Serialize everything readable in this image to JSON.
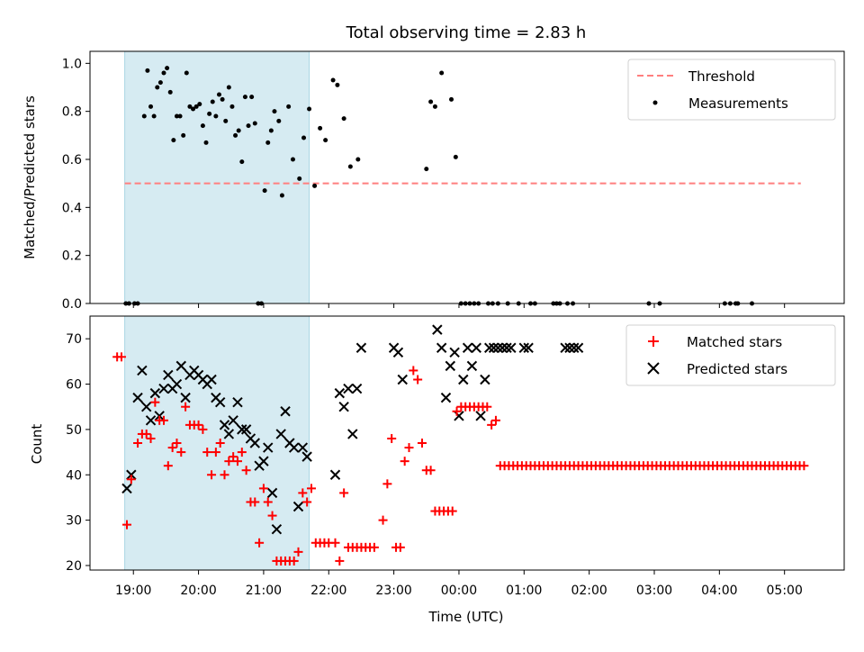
{
  "chart_data": [
    {
      "type": "scatter",
      "title": "Total observing time = 2.83 h",
      "ylabel": "Matched/Predicted stars",
      "xlim": [
        "18:20",
        "05:55"
      ],
      "ylim": [
        0,
        1.05
      ],
      "yticks": [
        "0.0",
        "0.2",
        "0.4",
        "0.6",
        "0.8",
        "1.0"
      ],
      "legend_position": "top-right",
      "shaded_interval": [
        "18:52",
        "21:42"
      ],
      "threshold": {
        "name": "Threshold",
        "value": 0.5,
        "x_range": [
          "18:52",
          "05:15"
        ],
        "style": "dashed"
      },
      "series": [
        {
          "name": "Measurements",
          "x": [
            "18:53",
            "18:56",
            "19:01",
            "19:04",
            "19:10",
            "19:13",
            "19:16",
            "19:19",
            "19:22",
            "19:25",
            "19:28",
            "19:31",
            "19:34",
            "19:37",
            "19:40",
            "19:43",
            "19:46",
            "19:49",
            "19:52",
            "19:55",
            "19:58",
            "20:01",
            "20:04",
            "20:07",
            "20:10",
            "20:13",
            "20:16",
            "20:19",
            "20:22",
            "20:25",
            "20:28",
            "20:31",
            "20:34",
            "20:37",
            "20:40",
            "20:43",
            "20:46",
            "20:49",
            "20:52",
            "20:55",
            "20:58",
            "21:01",
            "21:04",
            "21:07",
            "21:10",
            "21:14",
            "21:17",
            "21:23",
            "21:27",
            "21:33",
            "21:37",
            "21:42",
            "21:47",
            "21:52",
            "21:57",
            "22:04",
            "22:08",
            "22:14",
            "22:20",
            "22:27",
            "23:30",
            "23:34",
            "23:38",
            "23:44",
            "23:53",
            "23:57",
            "24:02",
            "24:06",
            "24:10",
            "24:14",
            "24:18",
            "24:27",
            "24:31",
            "24:36",
            "24:45",
            "24:55",
            "25:06",
            "25:10",
            "25:27",
            "25:30",
            "25:33",
            "25:40",
            "25:45",
            "26:55",
            "27:05",
            "28:05",
            "28:10",
            "28:15",
            "28:17",
            "28:30"
          ],
          "values": [
            0.0,
            0.0,
            0.0,
            0.0,
            0.78,
            0.97,
            0.82,
            0.78,
            0.9,
            0.92,
            0.96,
            0.98,
            0.88,
            0.68,
            0.78,
            0.78,
            0.7,
            0.96,
            0.82,
            0.81,
            0.82,
            0.83,
            0.74,
            0.67,
            0.79,
            0.84,
            0.78,
            0.87,
            0.85,
            0.76,
            0.9,
            0.82,
            0.7,
            0.72,
            0.59,
            0.86,
            0.74,
            0.86,
            0.75,
            0.0,
            0.0,
            0.47,
            0.67,
            0.72,
            0.8,
            0.76,
            0.45,
            0.82,
            0.6,
            0.52,
            0.69,
            0.81,
            0.49,
            0.73,
            0.68,
            0.93,
            0.91,
            0.77,
            0.57,
            0.6,
            0.56,
            0.84,
            0.82,
            0.96,
            0.85,
            0.61,
            0.0,
            0.0,
            0.0,
            0.0,
            0.0,
            0.0,
            0.0,
            0.0,
            0.0,
            0.0,
            0.0,
            0.0,
            0.0,
            0.0,
            0.0,
            0.0,
            0.0,
            0.0,
            0.0,
            0.0,
            0.0,
            0.0,
            0.0,
            0.0
          ]
        }
      ]
    },
    {
      "type": "scatter",
      "ylabel": "Count",
      "xlabel": "Time (UTC)",
      "xlim": [
        "18:20",
        "05:55"
      ],
      "ylim": [
        19,
        75
      ],
      "yticks": [
        "20",
        "30",
        "40",
        "50",
        "60",
        "70"
      ],
      "xticks": [
        "19:00",
        "20:00",
        "21:00",
        "22:00",
        "23:00",
        "00:00",
        "01:00",
        "02:00",
        "03:00",
        "04:00",
        "05:00"
      ],
      "legend_position": "top-right",
      "shaded_interval": [
        "18:52",
        "21:42"
      ],
      "series": [
        {
          "name": "Matched stars",
          "marker": "+",
          "x": [
            "18:45",
            "18:49",
            "18:54",
            "18:58",
            "19:04",
            "19:08",
            "19:12",
            "19:16",
            "19:20",
            "19:24",
            "19:28",
            "19:32",
            "19:36",
            "19:40",
            "19:44",
            "19:48",
            "19:52",
            "19:56",
            "20:00",
            "20:04",
            "20:08",
            "20:12",
            "20:16",
            "20:20",
            "20:24",
            "20:28",
            "20:32",
            "20:36",
            "20:40",
            "20:44",
            "20:48",
            "20:52",
            "20:56",
            "21:00",
            "21:04",
            "21:08",
            "21:12",
            "21:16",
            "21:20",
            "21:24",
            "21:28",
            "21:32",
            "21:36",
            "21:40",
            "21:44",
            "21:48",
            "21:52",
            "21:56",
            "22:00",
            "22:06",
            "22:10",
            "22:14",
            "22:18",
            "22:22",
            "22:26",
            "22:30",
            "22:34",
            "22:38",
            "22:42",
            "22:50",
            "22:54",
            "22:58",
            "23:02",
            "23:06",
            "23:10",
            "23:14",
            "23:18",
            "23:22",
            "23:26",
            "23:30",
            "23:34",
            "23:38",
            "23:42",
            "23:46",
            "23:50",
            "23:54",
            "23:58",
            "24:02",
            "24:06",
            "24:10",
            "24:14",
            "24:18",
            "24:22",
            "24:26",
            "24:30",
            "24:34",
            "24:38",
            "24:42",
            "24:46",
            "24:50",
            "24:54",
            "24:58",
            "25:02",
            "25:06",
            "25:10",
            "25:14",
            "25:18",
            "25:22",
            "25:26",
            "25:30",
            "25:34",
            "25:38",
            "25:42",
            "25:46",
            "25:50",
            "25:54",
            "25:58",
            "26:02",
            "26:06",
            "26:10",
            "26:14",
            "26:18",
            "26:22",
            "26:26",
            "26:30",
            "26:34",
            "26:38",
            "26:42",
            "26:46",
            "26:50",
            "26:54",
            "26:58",
            "27:02",
            "27:06",
            "27:10",
            "27:14",
            "27:18",
            "27:22",
            "27:26",
            "27:30",
            "27:34",
            "27:38",
            "27:42",
            "27:46",
            "27:50",
            "27:54",
            "27:58",
            "28:02",
            "28:06",
            "28:10",
            "28:14",
            "28:18",
            "28:22",
            "28:26",
            "28:30",
            "28:34",
            "28:38",
            "28:42",
            "28:46",
            "28:50",
            "28:54",
            "28:58",
            "29:02",
            "29:06",
            "29:10",
            "29:14",
            "29:18"
          ],
          "values": [
            66,
            66,
            29,
            39,
            47,
            49,
            49,
            48,
            56,
            52,
            52,
            42,
            46,
            47,
            45,
            55,
            51,
            51,
            51,
            50,
            45,
            40,
            45,
            47,
            40,
            43,
            44,
            43,
            45,
            41,
            34,
            34,
            25,
            37,
            34,
            31,
            21,
            21,
            21,
            21,
            21,
            23,
            36,
            34,
            37,
            25,
            25,
            25,
            25,
            25,
            21,
            36,
            24,
            24,
            24,
            24,
            24,
            24,
            24,
            30,
            38,
            48,
            24,
            24,
            43,
            46,
            63,
            61,
            47,
            41,
            41,
            32,
            32,
            32,
            32,
            32,
            54,
            55,
            55,
            55,
            55,
            55,
            55,
            55,
            51,
            52,
            42,
            42,
            42,
            42,
            42,
            42,
            42,
            42,
            42,
            42,
            42,
            42,
            42,
            42,
            42,
            42,
            42,
            42,
            42,
            42,
            42,
            42,
            42,
            42,
            42,
            42,
            42,
            42,
            42,
            42,
            42,
            42,
            42,
            42,
            42,
            42,
            42,
            42,
            42,
            42,
            42,
            42,
            42,
            42,
            42,
            42,
            42,
            42,
            42,
            42,
            42,
            42,
            42,
            42,
            42,
            42,
            42,
            42,
            42,
            42,
            42,
            42,
            42,
            42,
            42,
            42,
            42,
            42,
            42,
            42,
            42
          ]
        },
        {
          "name": "Predicted stars",
          "marker": "x",
          "x": [
            "18:54",
            "18:58",
            "19:04",
            "19:08",
            "19:12",
            "19:16",
            "19:20",
            "19:24",
            "19:28",
            "19:32",
            "19:36",
            "19:40",
            "19:44",
            "19:48",
            "19:52",
            "19:56",
            "20:00",
            "20:04",
            "20:08",
            "20:12",
            "20:16",
            "20:20",
            "20:24",
            "20:28",
            "20:32",
            "20:36",
            "20:40",
            "20:44",
            "20:48",
            "20:52",
            "20:56",
            "21:00",
            "21:04",
            "21:08",
            "21:12",
            "21:16",
            "21:20",
            "21:24",
            "21:28",
            "21:32",
            "21:36",
            "21:40",
            "22:06",
            "22:10",
            "22:14",
            "22:18",
            "22:22",
            "22:26",
            "22:30",
            "23:00",
            "23:04",
            "23:08",
            "23:40",
            "23:44",
            "23:48",
            "23:52",
            "23:56",
            "24:00",
            "24:04",
            "24:08",
            "24:12",
            "24:16",
            "24:20",
            "24:24",
            "24:28",
            "24:32",
            "24:36",
            "24:40",
            "24:44",
            "24:48",
            "25:00",
            "25:04",
            "25:38",
            "25:42",
            "25:46",
            "25:50"
          ],
          "values": [
            37,
            40,
            57,
            63,
            55,
            52,
            58,
            53,
            59,
            62,
            59,
            60,
            64,
            57,
            62,
            63,
            62,
            61,
            60,
            61,
            57,
            56,
            51,
            49,
            52,
            56,
            50,
            50,
            48,
            47,
            42,
            43,
            46,
            36,
            28,
            49,
            54,
            47,
            46,
            33,
            46,
            44,
            40,
            58,
            55,
            59,
            49,
            59,
            68,
            68,
            67,
            61,
            72,
            68,
            57,
            64,
            67,
            53,
            61,
            68,
            64,
            68,
            53,
            61,
            68,
            68,
            68,
            68,
            68,
            68,
            68,
            68,
            68,
            68,
            68,
            68
          ]
        }
      ]
    }
  ]
}
